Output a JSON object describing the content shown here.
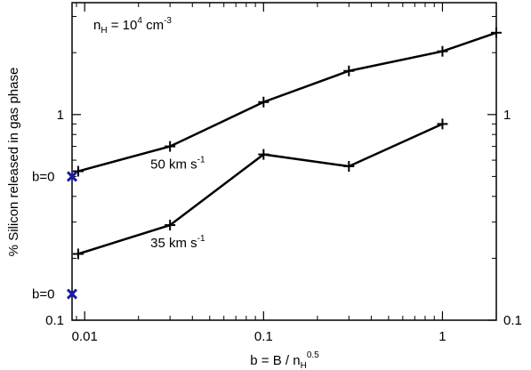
{
  "chart_data": {
    "type": "line",
    "title": "",
    "xlabel": "b = B / n",
    "xlabel_sub": "H",
    "xlabel_sup": "0.5",
    "ylabel": "% Silicon released in gas phase",
    "x_scale": "log",
    "y_scale": "log",
    "xlim": [
      0.0085,
      2.0
    ],
    "ylim": [
      0.1,
      3.5
    ],
    "grid": false,
    "x_ticks": [
      {
        "value": 0.01,
        "label": "0.01"
      },
      {
        "value": 0.1,
        "label": "0.1"
      },
      {
        "value": 1,
        "label": "1"
      }
    ],
    "y_ticks": [
      {
        "value": 0.1,
        "label": "0.1"
      },
      {
        "value": 1,
        "label": "1"
      }
    ],
    "y_ticks_right": [
      {
        "value": 0.1,
        "label": "0.1"
      },
      {
        "value": 1,
        "label": "1"
      }
    ],
    "annotation_density": {
      "prefix": "n",
      "sub": "H",
      "mid": " = 10",
      "sup": "4",
      "unit": " cm",
      "unit_sup": "-3"
    },
    "series": [
      {
        "label_text": "50 km s",
        "label_sup": "-1",
        "color": "#000000",
        "x": [
          0.0092,
          0.03,
          0.1,
          0.3,
          1.0,
          2.0
        ],
        "y": [
          0.53,
          0.7,
          1.15,
          1.63,
          2.03,
          2.5
        ]
      },
      {
        "label_text": "35 km s",
        "label_sup": "-1",
        "color": "#000000",
        "x": [
          0.0092,
          0.03,
          0.1,
          0.3,
          1.0
        ],
        "y": [
          0.21,
          0.29,
          0.64,
          0.56,
          0.9
        ]
      }
    ],
    "b0_markers": [
      {
        "label": "b=0",
        "x": 0.0085,
        "y": 0.5,
        "color": "#1a1aa6"
      },
      {
        "label": "b=0",
        "x": 0.0085,
        "y": 0.134,
        "color": "#1a1aa6"
      }
    ]
  }
}
